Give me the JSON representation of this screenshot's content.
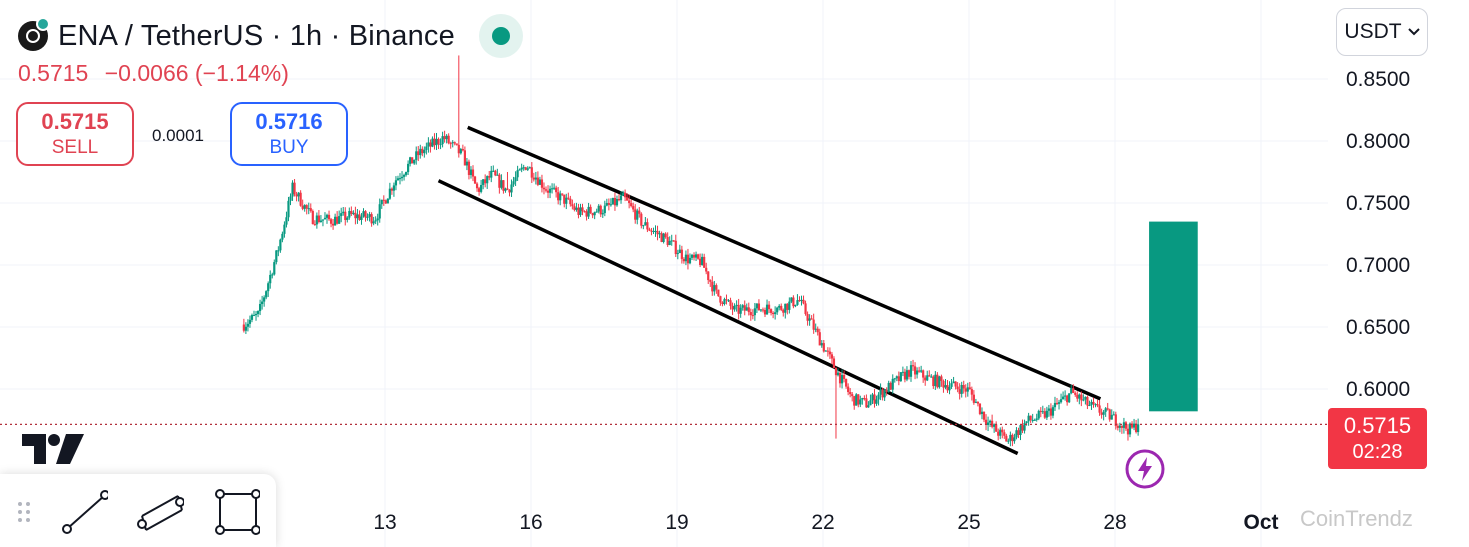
{
  "header": {
    "title": "ENA / TetherUS · 1h · Binance",
    "last_price": "0.5715",
    "change": "−0.0066 (−1.14%)"
  },
  "trade": {
    "sell_price": "0.5715",
    "sell_label": "SELL",
    "buy_price": "0.5716",
    "buy_label": "BUY",
    "spread": "0.0001"
  },
  "currency_selector": {
    "value": "USDT"
  },
  "price_tag": {
    "price": "0.5715",
    "countdown": "02:28"
  },
  "watermark": "CoinTrendz",
  "toolbar": {
    "tools": [
      "drag-handle-icon",
      "trend-line-icon",
      "parallel-channel-icon",
      "rectangle-icon"
    ]
  },
  "colors": {
    "up": "#089981",
    "down": "#f23645",
    "channel": "#000000",
    "target_box": "#089981",
    "price_line": "#b2303c"
  },
  "chart_data": {
    "type": "candlestick",
    "symbol": "ENA / TetherUS",
    "interval": "1h",
    "exchange": "Binance",
    "ylim": [
      0.535,
      0.872
    ],
    "y_ticks": [
      "0.8500",
      "0.8000",
      "0.7500",
      "0.7000",
      "0.6500",
      "0.6000"
    ],
    "y_tick_values": [
      0.85,
      0.8,
      0.75,
      0.7,
      0.65,
      0.6
    ],
    "x_ticks": [
      "13",
      "16",
      "19",
      "22",
      "25",
      "28",
      "Oct"
    ],
    "x_tick_days": [
      13,
      16,
      19,
      22,
      25,
      28,
      31
    ],
    "x_range_days": [
      10.1,
      32.2
    ],
    "last_price": 0.5715,
    "price_path": [
      [
        10.1,
        0.652
      ],
      [
        10.4,
        0.66
      ],
      [
        10.8,
        0.712
      ],
      [
        11.1,
        0.762
      ],
      [
        11.5,
        0.738
      ],
      [
        11.9,
        0.736
      ],
      [
        12.3,
        0.74
      ],
      [
        12.8,
        0.738
      ],
      [
        13.2,
        0.768
      ],
      [
        13.7,
        0.79
      ],
      [
        14.2,
        0.803
      ],
      [
        14.6,
        0.788
      ],
      [
        14.9,
        0.76
      ],
      [
        15.2,
        0.773
      ],
      [
        15.5,
        0.76
      ],
      [
        15.9,
        0.781
      ],
      [
        16.3,
        0.762
      ],
      [
        16.7,
        0.752
      ],
      [
        17.0,
        0.742
      ],
      [
        17.5,
        0.745
      ],
      [
        17.9,
        0.754
      ],
      [
        18.3,
        0.733
      ],
      [
        18.8,
        0.72
      ],
      [
        19.2,
        0.705
      ],
      [
        19.5,
        0.703
      ],
      [
        19.8,
        0.677
      ],
      [
        20.2,
        0.663
      ],
      [
        20.7,
        0.665
      ],
      [
        21.1,
        0.665
      ],
      [
        21.5,
        0.672
      ],
      [
        21.8,
        0.65
      ],
      [
        22.2,
        0.62
      ],
      [
        22.6,
        0.592
      ],
      [
        22.9,
        0.588
      ],
      [
        23.3,
        0.6
      ],
      [
        23.8,
        0.615
      ],
      [
        24.2,
        0.608
      ],
      [
        24.6,
        0.603
      ],
      [
        25.0,
        0.599
      ],
      [
        25.4,
        0.572
      ],
      [
        25.8,
        0.558
      ],
      [
        26.2,
        0.574
      ],
      [
        26.6,
        0.58
      ],
      [
        27.1,
        0.597
      ],
      [
        27.5,
        0.586
      ],
      [
        27.9,
        0.578
      ],
      [
        28.3,
        0.567
      ],
      [
        28.5,
        0.5715
      ]
    ],
    "spikes": [
      {
        "day": 14.5,
        "high": 0.869
      },
      {
        "day": 22.25,
        "low": 0.56
      },
      {
        "day": 15.5,
        "high": 0.775
      }
    ],
    "channel": {
      "upper": [
        [
          14.7,
          0.811
        ],
        [
          27.7,
          0.592
        ]
      ],
      "lower": [
        [
          14.1,
          0.768
        ],
        [
          26.0,
          0.548
        ]
      ]
    },
    "target_box": {
      "x0": 28.7,
      "x1": 29.7,
      "y_top": 0.735,
      "y_bottom": 0.582
    }
  }
}
